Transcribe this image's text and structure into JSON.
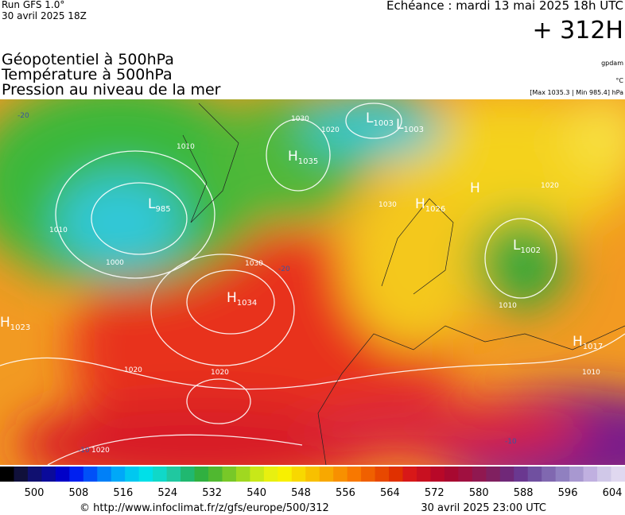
{
  "header": {
    "run": "Run GFS 1.0°",
    "run_date": "30 avril 2025 18Z",
    "echeance": "Echéance : mardi 13 mai 2025 18h UTC",
    "offset": "+ 312H",
    "layers": [
      "Géopotentiel à 500hPa",
      "Température à 500hPa",
      "Pression au niveau de la mer"
    ],
    "units": [
      "gpdam",
      "°C",
      "[Max 1035.3 | Min 985.4] hPa"
    ]
  },
  "map": {
    "centers": [
      {
        "letter": "H",
        "value": 1035
      },
      {
        "letter": "L",
        "value": 1003
      },
      {
        "letter": "L",
        "value": 1003
      },
      {
        "letter": "L",
        "value": 985
      },
      {
        "letter": "H",
        "value": 1026
      },
      {
        "letter": "H"
      },
      {
        "letter": "L",
        "value": 1002
      },
      {
        "letter": "H",
        "value": 1034
      },
      {
        "letter": "H",
        "value": 1023
      },
      {
        "letter": "H",
        "value": 1017
      }
    ],
    "contour_labels": [
      1030,
      1020,
      1010,
      1000,
      1010,
      1030,
      1020,
      1020,
      1020,
      1010,
      1020,
      1010,
      1030
    ],
    "temperature_labels": [
      -20,
      -20,
      -10,
      -10
    ]
  },
  "colorbar": {
    "ticks": [
      500,
      508,
      516,
      524,
      532,
      540,
      548,
      556,
      564,
      572,
      580,
      588,
      596,
      604
    ]
  },
  "footer": {
    "source": "© http://www.infoclimat.fr/z/gfs/europe/500/312",
    "created": "30 avril 2025 23:00 UTC"
  }
}
